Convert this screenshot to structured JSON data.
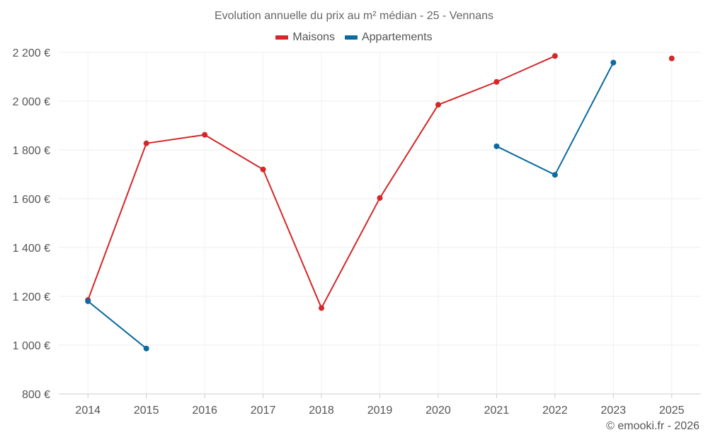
{
  "chart_data": {
    "type": "line",
    "title": "Evolution annuelle du prix au m² médian - 25 - Vennans",
    "categories": [
      "2014",
      "2015",
      "2016",
      "2017",
      "2018",
      "2019",
      "2020",
      "2021",
      "2022",
      "2023",
      "2025"
    ],
    "ylim": [
      800,
      2200
    ],
    "yticks": [
      800,
      1000,
      1200,
      1400,
      1600,
      1800,
      2000,
      2200
    ],
    "ytick_labels": [
      "800 €",
      "1 000 €",
      "1 200 €",
      "1 400 €",
      "1 600 €",
      "1 800 €",
      "2 000 €",
      "2 200 €"
    ],
    "grid": true,
    "legend_position": "top-center",
    "series": [
      {
        "name": "Maisons",
        "color": "#d62728",
        "values": [
          1185,
          1827,
          1862,
          1720,
          1152,
          1603,
          1985,
          2079,
          2185,
          null,
          2175
        ]
      },
      {
        "name": "Appartements",
        "color": "#0a6aa1",
        "values": [
          1180,
          986,
          null,
          null,
          null,
          null,
          null,
          1815,
          1698,
          2158,
          null
        ]
      }
    ]
  },
  "credit": "© emooki.fr - 2026"
}
